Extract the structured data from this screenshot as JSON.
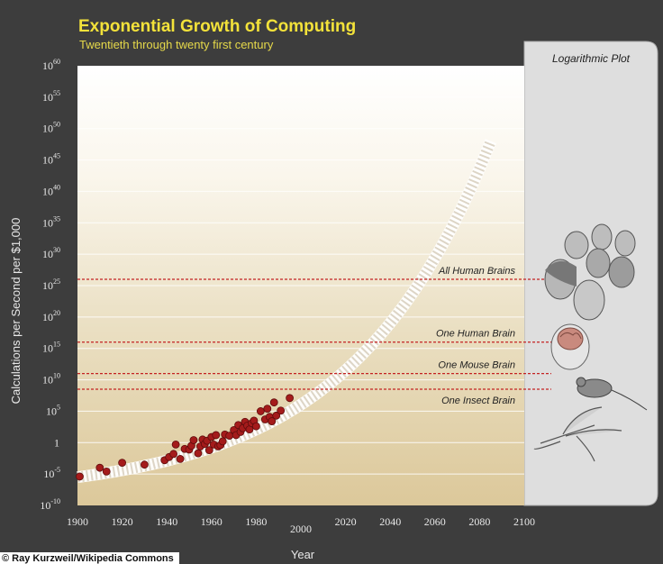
{
  "chart_data": {
    "type": "scatter",
    "title": "Exponential Growth of Computing",
    "subtitle": "Twentieth through twenty first century",
    "xlabel": "Year",
    "ylabel": "Calculations per Second per $1,000",
    "xlim": [
      1900,
      2100
    ],
    "ylim": [
      -10,
      60
    ],
    "x_ticks": [
      "1900",
      "1920",
      "1940",
      "1960",
      "1980",
      "2000",
      "2020",
      "2040",
      "2060",
      "2080",
      "2100"
    ],
    "y_ticks": [
      {
        "base": "10",
        "exp": "60",
        "value": 60
      },
      {
        "base": "10",
        "exp": "55",
        "value": 55
      },
      {
        "base": "10",
        "exp": "50",
        "value": 50
      },
      {
        "base": "10",
        "exp": "45",
        "value": 45
      },
      {
        "base": "10",
        "exp": "40",
        "value": 40
      },
      {
        "base": "10",
        "exp": "35",
        "value": 35
      },
      {
        "base": "10",
        "exp": "30",
        "value": 30
      },
      {
        "base": "10",
        "exp": "25",
        "value": 25
      },
      {
        "base": "10",
        "exp": "20",
        "value": 20
      },
      {
        "base": "10",
        "exp": "15",
        "value": 15
      },
      {
        "base": "10",
        "exp": "10",
        "value": 10
      },
      {
        "base": "10",
        "exp": "5",
        "value": 5
      },
      {
        "base": "1",
        "exp": "",
        "value": 0
      },
      {
        "base": "10",
        "exp": "-5",
        "value": -5
      },
      {
        "base": "10",
        "exp": "-10",
        "value": -10
      }
    ],
    "reference_lines": [
      {
        "label": "All Human Brains",
        "value": 26
      },
      {
        "label": "One Human Brain",
        "value": 16
      },
      {
        "label": "One Mouse Brain",
        "value": 11
      },
      {
        "label": "One Insect Brain",
        "value": 8.5
      }
    ],
    "trend": {
      "start_year": 1900,
      "end_year": 2085,
      "start_log": -5.5,
      "end_log": 48,
      "k": 0.016
    },
    "points": [
      {
        "x": 1901,
        "y": -5.4
      },
      {
        "x": 1910,
        "y": -4.0
      },
      {
        "x": 1913,
        "y": -4.6
      },
      {
        "x": 1920,
        "y": -3.2
      },
      {
        "x": 1930,
        "y": -3.5
      },
      {
        "x": 1939,
        "y": -2.8
      },
      {
        "x": 1941,
        "y": -2.3
      },
      {
        "x": 1943,
        "y": -1.8
      },
      {
        "x": 1944,
        "y": -0.3
      },
      {
        "x": 1946,
        "y": -2.6
      },
      {
        "x": 1948,
        "y": -1.0
      },
      {
        "x": 1950,
        "y": -1.1
      },
      {
        "x": 1951,
        "y": -0.5
      },
      {
        "x": 1952,
        "y": 0.4
      },
      {
        "x": 1954,
        "y": -1.7
      },
      {
        "x": 1955,
        "y": -0.6
      },
      {
        "x": 1956,
        "y": 0.5
      },
      {
        "x": 1957,
        "y": -0.2
      },
      {
        "x": 1958,
        "y": 0.3
      },
      {
        "x": 1959,
        "y": -1.2
      },
      {
        "x": 1960,
        "y": 0.9
      },
      {
        "x": 1961,
        "y": -0.3
      },
      {
        "x": 1962,
        "y": 1.2
      },
      {
        "x": 1963,
        "y": -0.6
      },
      {
        "x": 1964,
        "y": -0.4
      },
      {
        "x": 1965,
        "y": 0.2
      },
      {
        "x": 1966,
        "y": 1.3
      },
      {
        "x": 1968,
        "y": 1.1
      },
      {
        "x": 1970,
        "y": 2.0
      },
      {
        "x": 1971,
        "y": 1.2
      },
      {
        "x": 1972,
        "y": 2.8
      },
      {
        "x": 1973,
        "y": 1.7
      },
      {
        "x": 1974,
        "y": 2.3
      },
      {
        "x": 1975,
        "y": 3.3
      },
      {
        "x": 1976,
        "y": 2.7
      },
      {
        "x": 1977,
        "y": 2.1
      },
      {
        "x": 1978,
        "y": 3.1
      },
      {
        "x": 1979,
        "y": 3.5
      },
      {
        "x": 1980,
        "y": 2.6
      },
      {
        "x": 1982,
        "y": 5.0
      },
      {
        "x": 1984,
        "y": 3.7
      },
      {
        "x": 1985,
        "y": 5.4
      },
      {
        "x": 1986,
        "y": 4.1
      },
      {
        "x": 1987,
        "y": 3.4
      },
      {
        "x": 1988,
        "y": 6.4
      },
      {
        "x": 1989,
        "y": 4.3
      },
      {
        "x": 1991,
        "y": 5.1
      },
      {
        "x": 1995,
        "y": 7.1
      }
    ]
  },
  "panel": {
    "title": "Logarithmic Plot"
  },
  "credit": "© Ray Kurzweil/Wikipedia Commons",
  "colors": {
    "background": "#3d3d3d",
    "title": "#f3e23a",
    "point": "#a41b1b",
    "reference_line": "#c42222",
    "panel": "#dedede"
  }
}
